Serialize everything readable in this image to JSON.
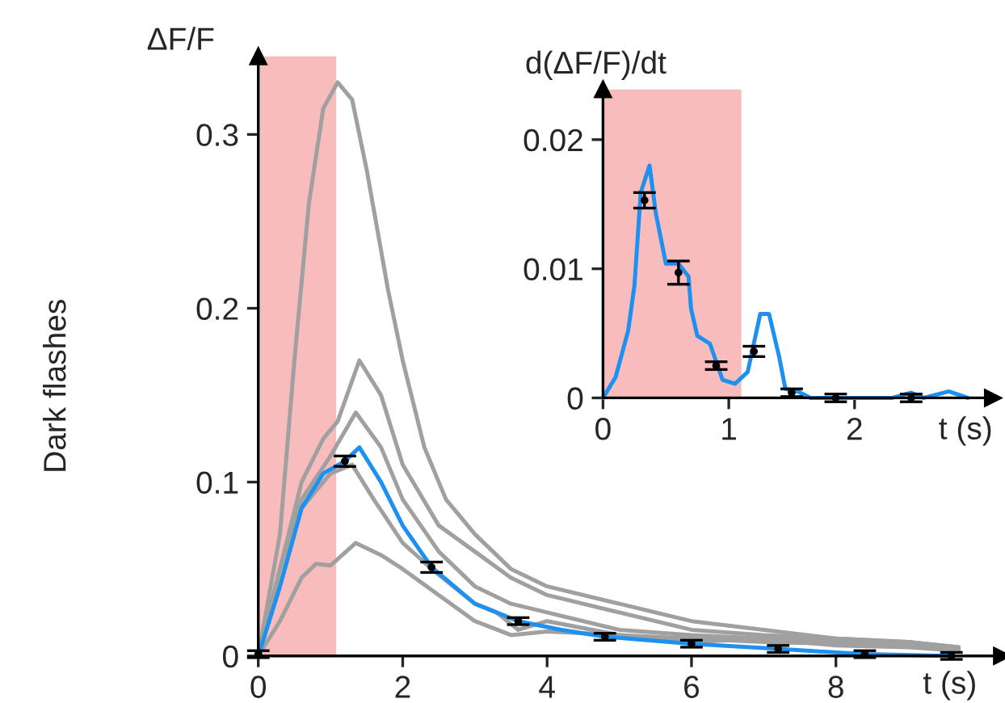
{
  "chart_data": [
    {
      "type": "line",
      "xlabel": "t (s)",
      "ylabel": "ΔF/F",
      "annotations": [
        "Dark flashes"
      ],
      "xlim": [
        0,
        10.3
      ],
      "ylim": [
        0,
        0.345
      ],
      "xticks": [
        0,
        2,
        4,
        6,
        8
      ],
      "yticks": [
        0,
        0.1,
        0.2,
        0.3
      ],
      "marker": "none",
      "line_style": "solid",
      "bands": [
        {
          "axis": "x",
          "from": 0,
          "to": 1.08,
          "color": "#f9bcbc"
        }
      ],
      "series": [
        {
          "color": "#a0a0a0",
          "x": [
            0,
            0.3,
            0.5,
            0.7,
            0.9,
            1.1,
            1.3,
            1.5,
            1.8,
            2.0,
            2.3,
            2.6,
            3.0,
            3.5,
            4,
            5,
            6,
            7,
            8,
            9,
            9.7
          ],
          "values": [
            0,
            0.07,
            0.17,
            0.26,
            0.315,
            0.33,
            0.32,
            0.28,
            0.21,
            0.17,
            0.12,
            0.09,
            0.07,
            0.05,
            0.04,
            0.03,
            0.02,
            0.015,
            0.01,
            0.008,
            0.005
          ]
        },
        {
          "color": "#a0a0a0",
          "x": [
            0,
            0.3,
            0.6,
            0.9,
            1.1,
            1.4,
            1.7,
            2.0,
            2.5,
            3,
            3.5,
            4,
            5,
            6,
            7,
            8,
            9,
            9.7
          ],
          "values": [
            0,
            0.05,
            0.1,
            0.125,
            0.135,
            0.17,
            0.15,
            0.11,
            0.075,
            0.06,
            0.045,
            0.035,
            0.025,
            0.015,
            0.012,
            0.01,
            0.008,
            0.005
          ]
        },
        {
          "color": "#a0a0a0",
          "x": [
            0,
            0.3,
            0.6,
            1.0,
            1.35,
            1.7,
            2.0,
            2.5,
            3,
            3.5,
            4,
            5,
            6,
            7,
            8,
            9,
            9.7
          ],
          "values": [
            0,
            0.05,
            0.09,
            0.115,
            0.14,
            0.12,
            0.09,
            0.06,
            0.04,
            0.03,
            0.025,
            0.015,
            0.012,
            0.01,
            0.008,
            0.006,
            0.005
          ]
        },
        {
          "color": "#a0a0a0",
          "x": [
            0,
            0.3,
            0.6,
            1.0,
            1.3,
            1.6,
            2.0,
            2.4,
            3.0,
            3.3,
            3.6,
            4.0,
            5,
            6,
            7,
            8,
            9,
            9.7
          ],
          "values": [
            0,
            0.04,
            0.085,
            0.105,
            0.11,
            0.09,
            0.065,
            0.05,
            0.03,
            0.025,
            0.015,
            0.02,
            0.012,
            0.008,
            0.01,
            0.006,
            0.005,
            0.003
          ]
        },
        {
          "color": "#a0a0a0",
          "x": [
            0,
            0.3,
            0.6,
            0.8,
            1.0,
            1.35,
            1.7,
            2.0,
            2.5,
            3.0,
            3.5,
            4.0,
            5,
            6,
            7,
            8,
            9,
            9.7
          ],
          "values": [
            0,
            0.02,
            0.045,
            0.053,
            0.052,
            0.065,
            0.058,
            0.05,
            0.035,
            0.02,
            0.012,
            0.014,
            0.012,
            0.01,
            0.008,
            0.007,
            0.008,
            0.004
          ]
        },
        {
          "color": "#1e90f0",
          "x": [
            0,
            0.3,
            0.6,
            0.9,
            1.2,
            1.4,
            1.7,
            2.0,
            2.4,
            3.0,
            3.6,
            4.2,
            4.8,
            6.0,
            7.2,
            8.4,
            9.6
          ],
          "values": [
            0,
            0.04,
            0.085,
            0.105,
            0.112,
            0.12,
            0.1,
            0.075,
            0.051,
            0.03,
            0.02,
            0.015,
            0.011,
            0.007,
            0.004,
            0.001,
            0
          ]
        },
        {
          "type": "scatter",
          "color": "#000000",
          "x": [
            0,
            1.2,
            2.4,
            3.6,
            4.8,
            6.0,
            7.2,
            8.4,
            9.6
          ],
          "marker": "circle",
          "values": [
            0.001,
            0.112,
            0.051,
            0.02,
            0.011,
            0.007,
            0.004,
            0.001,
            0
          ],
          "errors": [
            0.002,
            0.003,
            0.003,
            0.002,
            0.002,
            0.002,
            0.002,
            0.002,
            0.002
          ]
        }
      ]
    },
    {
      "type": "line",
      "xlabel": "t (s)",
      "ylabel": "d(ΔF/F)/dt",
      "xlim": [
        0,
        3.1
      ],
      "ylim": [
        0,
        0.0239
      ],
      "xticks": [
        0,
        1,
        2
      ],
      "yticks": [
        0,
        0.01,
        0.02
      ],
      "marker": "none",
      "line_style": "solid",
      "bands": [
        {
          "axis": "x",
          "from": 0,
          "to": 1.1,
          "color": "#f9bcbc"
        }
      ],
      "series": [
        {
          "color": "#1e90f0",
          "x": [
            0,
            0.1,
            0.2,
            0.25,
            0.3,
            0.37,
            0.42,
            0.5,
            0.6,
            0.68,
            0.7,
            0.75,
            0.85,
            0.95,
            1.05,
            1.15,
            1.25,
            1.32,
            1.4,
            1.45,
            1.55,
            1.65,
            2.0,
            2.3,
            2.45,
            2.55,
            2.75,
            2.9
          ],
          "values": [
            0,
            0.0016,
            0.0052,
            0.0087,
            0.0159,
            0.018,
            0.0143,
            0.0104,
            0.0104,
            0.0094,
            0.0069,
            0.0048,
            0.0042,
            0.0014,
            0.0011,
            0.002,
            0.0065,
            0.0065,
            0.0032,
            0.0007,
            0.0005,
            0,
            0,
            0,
            0.0004,
            0,
            0.0005,
            0
          ]
        },
        {
          "type": "scatter",
          "color": "#000000",
          "x": [
            0.33,
            0.6,
            0.9,
            1.2,
            1.5,
            1.85,
            2.45
          ],
          "marker": "circle",
          "values": [
            0.0153,
            0.0097,
            0.0025,
            0.0036,
            0.0004,
            0,
            0
          ],
          "errors": [
            0.0006,
            0.0009,
            0.0003,
            0.0004,
            0.0003,
            0.0003,
            0.0003
          ]
        }
      ]
    }
  ]
}
